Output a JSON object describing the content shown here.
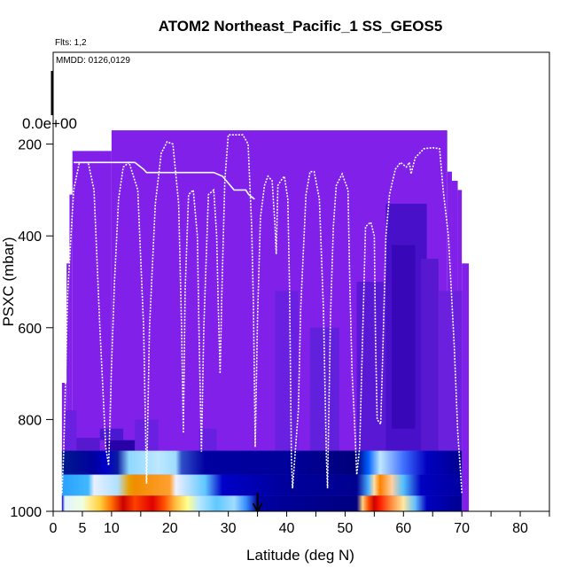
{
  "chart_data": {
    "type": "heatmap",
    "title": "ATOM2 Northeast_Pacific_1 SS_GEOS5",
    "flights_label": "Flts: 1,2",
    "dates_label": "MMDD: 0126,0129",
    "colorbar_value_label": "0.0e+00",
    "xlabel": "Latitude (deg N)",
    "ylabel": "PSXC (mbar)",
    "xlim": [
      0,
      85
    ],
    "ylim": [
      1000,
      0
    ],
    "x_ticks": [
      0,
      5,
      10,
      20,
      30,
      40,
      50,
      60,
      70,
      80
    ],
    "y_ticks": [
      200,
      400,
      600,
      800,
      1000
    ],
    "marker_latitude": 35,
    "colors": {
      "background_field": "#8020e8",
      "flight_track": "#ffffff",
      "dark_field": "#5010c8"
    },
    "column_tops": [
      {
        "x0": 1.5,
        "x1": 2.3,
        "p": 720
      },
      {
        "x0": 2.3,
        "x1": 2.8,
        "p": 460
      },
      {
        "x0": 2.8,
        "x1": 3.3,
        "p": 310
      },
      {
        "x0": 3.3,
        "x1": 10,
        "p": 215
      },
      {
        "x0": 10,
        "x1": 67.5,
        "p": 170
      },
      {
        "x0": 67.5,
        "x1": 68.3,
        "p": 260
      },
      {
        "x0": 68.3,
        "x1": 69.3,
        "p": 280
      },
      {
        "x0": 69.3,
        "x1": 70,
        "p": 300
      },
      {
        "x0": 70,
        "x1": 71.2,
        "p": 460
      }
    ],
    "surface_band_x": [
      1.5,
      70
    ],
    "surface_rows": [
      {
        "p_top": 868,
        "p_bot": 920,
        "stops": [
          [
            1.5,
            "#001a8c"
          ],
          [
            7,
            "#0000a0"
          ],
          [
            9,
            "#0000c8"
          ],
          [
            11,
            "#0a1aa0"
          ],
          [
            13,
            "#8ed8ff"
          ],
          [
            18,
            "#bde8ff"
          ],
          [
            21,
            "#9fdcff"
          ],
          [
            22,
            "#3050c8"
          ],
          [
            26,
            "#0000a0"
          ],
          [
            40,
            "#00009a"
          ],
          [
            52,
            "#00007a"
          ],
          [
            54,
            "#0060ff"
          ],
          [
            56,
            "#bfe8ff"
          ],
          [
            60,
            "#4070ff"
          ],
          [
            64,
            "#0000c0"
          ],
          [
            70,
            "#000090"
          ]
        ]
      },
      {
        "p_top": 920,
        "p_bot": 966,
        "stops": [
          [
            1.5,
            "#28a0ff"
          ],
          [
            6,
            "#40b8ff"
          ],
          [
            7,
            "#e8f0ff"
          ],
          [
            11,
            "#b0e0ff"
          ],
          [
            13,
            "#e8a000"
          ],
          [
            14,
            "#f08c00"
          ],
          [
            20,
            "#ffa030"
          ],
          [
            21,
            "#f0f0ff"
          ],
          [
            26,
            "#60c8ff"
          ],
          [
            29,
            "#0000c8"
          ],
          [
            40,
            "#00009a"
          ],
          [
            52,
            "#000090"
          ],
          [
            54,
            "#4ab0ff"
          ],
          [
            55,
            "#ffe0a0"
          ],
          [
            56,
            "#ff8000"
          ],
          [
            58,
            "#ffd0a0"
          ],
          [
            60,
            "#50c0ff"
          ],
          [
            63,
            "#0000c0"
          ],
          [
            70,
            "#0000a0"
          ]
        ]
      },
      {
        "p_top": 966,
        "p_bot": 1000,
        "stops": [
          [
            1.5,
            "#0000c0"
          ],
          [
            2,
            "#e0f4ff"
          ],
          [
            5,
            "#f0ffe0"
          ],
          [
            6,
            "#fff0a0"
          ],
          [
            8,
            "#ffd040"
          ],
          [
            10,
            "#ff7000"
          ],
          [
            12,
            "#cc0000"
          ],
          [
            14,
            "#ff4000"
          ],
          [
            17,
            "#e00000"
          ],
          [
            19,
            "#ff5000"
          ],
          [
            21,
            "#ffc040"
          ],
          [
            23,
            "#ffff90"
          ],
          [
            25,
            "#b8e8ff"
          ],
          [
            28,
            "#60c8ff"
          ],
          [
            31,
            "#a0dcff"
          ],
          [
            33,
            "#3890ff"
          ],
          [
            35,
            "#0000a0"
          ],
          [
            52,
            "#000080"
          ],
          [
            53,
            "#ffd080"
          ],
          [
            54,
            "#ff5000"
          ],
          [
            55,
            "#cc0000"
          ],
          [
            56,
            "#ff2000"
          ],
          [
            58,
            "#ff9040"
          ],
          [
            60,
            "#ffe8a0"
          ],
          [
            62,
            "#60c0ff"
          ],
          [
            64,
            "#0000c0"
          ],
          [
            70,
            "#000090"
          ]
        ]
      }
    ],
    "dark_patches": [
      {
        "x0": 9,
        "x1": 14,
        "p0": 845,
        "p1": 868,
        "color": "#2800a8"
      },
      {
        "x0": 8,
        "x1": 12,
        "p0": 820,
        "p1": 845,
        "color": "#4a18d0"
      },
      {
        "x0": 14,
        "x1": 18,
        "p0": 800,
        "p1": 868,
        "color": "#6a20e0"
      },
      {
        "x0": 25,
        "x1": 28,
        "p0": 820,
        "p1": 868,
        "color": "#6820e0"
      },
      {
        "x0": 38,
        "x1": 42,
        "p0": 520,
        "p1": 868,
        "color": "#6a20e0"
      },
      {
        "x0": 44,
        "x1": 49,
        "p0": 600,
        "p1": 868,
        "color": "#6020dc"
      },
      {
        "x0": 52,
        "x1": 58,
        "p0": 500,
        "p1": 868,
        "color": "#5818d4"
      },
      {
        "x0": 57,
        "x1": 64,
        "p0": 330,
        "p1": 868,
        "color": "#4810c8"
      },
      {
        "x0": 58,
        "x1": 62,
        "p0": 420,
        "p1": 820,
        "color": "#3808b8"
      },
      {
        "x0": 63,
        "x1": 66,
        "p0": 450,
        "p1": 868,
        "color": "#5818d0"
      },
      {
        "x0": 66,
        "x1": 70,
        "p0": 520,
        "p1": 868,
        "color": "#6a20dc"
      },
      {
        "x0": 2,
        "x1": 4,
        "p0": 780,
        "p1": 868,
        "color": "#6a20e0"
      },
      {
        "x0": 4,
        "x1": 8,
        "p0": 840,
        "p1": 868,
        "color": "#5818d0"
      }
    ],
    "flight_track": [
      [
        1.5,
        960
      ],
      [
        1.8,
        870
      ],
      [
        2.5,
        520
      ],
      [
        3.5,
        300
      ],
      [
        4.5,
        240
      ],
      [
        6,
        240
      ],
      [
        7,
        300
      ],
      [
        8,
        600
      ],
      [
        9,
        860
      ],
      [
        9.5,
        900
      ],
      [
        10,
        680
      ],
      [
        10.5,
        500
      ],
      [
        11.2,
        320
      ],
      [
        12,
        250
      ],
      [
        13,
        240
      ],
      [
        14.5,
        300
      ],
      [
        15.5,
        600
      ],
      [
        16,
        940
      ],
      [
        16.5,
        600
      ],
      [
        17.5,
        330
      ],
      [
        18.5,
        220
      ],
      [
        19.5,
        195
      ],
      [
        20.5,
        200
      ],
      [
        21.5,
        330
      ],
      [
        22,
        600
      ],
      [
        22.3,
        830
      ],
      [
        22.6,
        520
      ],
      [
        23.2,
        310
      ],
      [
        24,
        300
      ],
      [
        24.7,
        400
      ],
      [
        25,
        620
      ],
      [
        25.4,
        870
      ],
      [
        25.8,
        600
      ],
      [
        26.6,
        310
      ],
      [
        27.5,
        300
      ],
      [
        28,
        400
      ],
      [
        28.3,
        560
      ],
      [
        28.6,
        700
      ],
      [
        28.9,
        520
      ],
      [
        29.4,
        280
      ],
      [
        30,
        180
      ],
      [
        31,
        180
      ],
      [
        32.5,
        180
      ],
      [
        33.4,
        200
      ],
      [
        34,
        380
      ],
      [
        34.3,
        550
      ],
      [
        34.6,
        860
      ],
      [
        35,
        580
      ],
      [
        35.5,
        360
      ],
      [
        36.2,
        290
      ],
      [
        36.8,
        270
      ],
      [
        37.5,
        280
      ],
      [
        38,
        380
      ],
      [
        38.2,
        440
      ],
      [
        38.5,
        290
      ],
      [
        39,
        280
      ],
      [
        39.6,
        270
      ],
      [
        40.2,
        320
      ],
      [
        40.5,
        520
      ],
      [
        40.8,
        880
      ],
      [
        41,
        950
      ],
      [
        42,
        780
      ],
      [
        42.4,
        560
      ],
      [
        43.3,
        310
      ],
      [
        44,
        260
      ],
      [
        44.7,
        260
      ],
      [
        45.6,
        320
      ],
      [
        46.3,
        560
      ],
      [
        46.8,
        880
      ],
      [
        47,
        950
      ],
      [
        47.5,
        580
      ],
      [
        48,
        380
      ],
      [
        48.5,
        290
      ],
      [
        49.5,
        265
      ],
      [
        50.5,
        300
      ],
      [
        50.8,
        500
      ],
      [
        51.2,
        700
      ],
      [
        51.6,
        800
      ],
      [
        52,
        920
      ],
      [
        52.5,
        860
      ],
      [
        53,
        620
      ],
      [
        53.5,
        380
      ],
      [
        54.4,
        370
      ],
      [
        55,
        400
      ],
      [
        55.2,
        620
      ],
      [
        55.5,
        800
      ],
      [
        56.1,
        810
      ],
      [
        56.4,
        680
      ],
      [
        57,
        400
      ],
      [
        57.6,
        310
      ],
      [
        58.6,
        255
      ],
      [
        59.5,
        240
      ],
      [
        60.5,
        250
      ],
      [
        61,
        240
      ],
      [
        61.3,
        265
      ],
      [
        62,
        230
      ],
      [
        63.5,
        210
      ],
      [
        65,
        208
      ],
      [
        66.2,
        210
      ],
      [
        66.8,
        300
      ],
      [
        67.7,
        400
      ],
      [
        68.7,
        640
      ],
      [
        69.3,
        830
      ],
      [
        69.8,
        920
      ],
      [
        70,
        960
      ]
    ],
    "flight_track_2": [
      [
        3.5,
        240
      ],
      [
        4.5,
        240
      ],
      [
        6,
        240
      ],
      [
        10,
        240
      ],
      [
        14,
        240
      ],
      [
        15.5,
        255
      ],
      [
        16,
        262
      ],
      [
        20,
        262
      ],
      [
        24,
        262
      ],
      [
        27.5,
        262
      ],
      [
        29,
        270
      ],
      [
        30,
        285
      ],
      [
        31,
        300
      ],
      [
        33,
        300
      ],
      [
        33.5,
        310
      ],
      [
        34.5,
        320
      ]
    ]
  }
}
